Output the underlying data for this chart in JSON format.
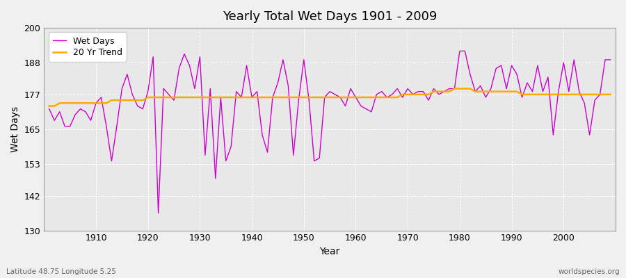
{
  "title": "Yearly Total Wet Days 1901 - 2009",
  "xlabel": "Year",
  "ylabel": "Wet Days",
  "subtitle_left": "Latitude 48.75 Longitude 5.25",
  "subtitle_right": "worldspecies.org",
  "line_color": "#cc00cc",
  "trend_color": "#ffaa00",
  "fig_bg_color": "#f0f0f0",
  "plot_bg_color": "#e8e8e8",
  "ylim": [
    130,
    200
  ],
  "yticks": [
    130,
    142,
    153,
    165,
    177,
    188,
    200
  ],
  "years": [
    1901,
    1902,
    1903,
    1904,
    1905,
    1906,
    1907,
    1908,
    1909,
    1910,
    1911,
    1912,
    1913,
    1914,
    1915,
    1916,
    1917,
    1918,
    1919,
    1920,
    1921,
    1922,
    1923,
    1924,
    1925,
    1926,
    1927,
    1928,
    1929,
    1930,
    1931,
    1932,
    1933,
    1934,
    1935,
    1936,
    1937,
    1938,
    1939,
    1940,
    1941,
    1942,
    1943,
    1944,
    1945,
    1946,
    1947,
    1948,
    1949,
    1950,
    1951,
    1952,
    1953,
    1954,
    1955,
    1956,
    1957,
    1958,
    1959,
    1960,
    1961,
    1962,
    1963,
    1964,
    1965,
    1966,
    1967,
    1968,
    1969,
    1970,
    1971,
    1972,
    1973,
    1974,
    1975,
    1976,
    1977,
    1978,
    1979,
    1980,
    1981,
    1982,
    1983,
    1984,
    1985,
    1986,
    1987,
    1988,
    1989,
    1990,
    1991,
    1992,
    1993,
    1994,
    1995,
    1996,
    1997,
    1998,
    1999,
    2000,
    2001,
    2002,
    2003,
    2004,
    2005,
    2006,
    2007,
    2008,
    2009
  ],
  "wet_days": [
    172,
    168,
    171,
    166,
    166,
    170,
    172,
    171,
    168,
    174,
    176,
    166,
    154,
    166,
    179,
    184,
    177,
    173,
    172,
    178,
    190,
    136,
    179,
    177,
    175,
    186,
    191,
    187,
    179,
    190,
    156,
    179,
    148,
    176,
    154,
    159,
    178,
    176,
    187,
    176,
    178,
    163,
    157,
    176,
    181,
    189,
    180,
    156,
    175,
    189,
    175,
    154,
    155,
    176,
    178,
    177,
    176,
    173,
    179,
    176,
    173,
    172,
    171,
    177,
    178,
    176,
    177,
    179,
    176,
    179,
    177,
    178,
    178,
    175,
    179,
    177,
    178,
    179,
    179,
    192,
    192,
    184,
    178,
    180,
    176,
    179,
    186,
    187,
    179,
    187,
    184,
    176,
    181,
    178,
    187,
    178,
    183,
    163,
    178,
    188,
    178,
    189,
    178,
    174,
    163,
    175,
    177,
    189,
    189
  ],
  "trend": [
    173,
    173,
    174,
    174,
    174,
    174,
    174,
    174,
    174,
    174,
    174,
    174,
    175,
    175,
    175,
    175,
    175,
    175,
    175,
    176,
    176,
    176,
    176,
    176,
    176,
    176,
    176,
    176,
    176,
    176,
    176,
    176,
    176,
    176,
    176,
    176,
    176,
    176,
    176,
    176,
    176,
    176,
    176,
    176,
    176,
    176,
    176,
    176,
    176,
    176,
    176,
    176,
    176,
    176,
    176,
    176,
    176,
    176,
    176,
    176,
    176,
    176,
    176,
    176,
    176,
    176,
    176,
    176,
    177,
    177,
    177,
    177,
    177,
    177,
    178,
    178,
    178,
    178,
    179,
    179,
    179,
    179,
    178,
    178,
    178,
    178,
    178,
    178,
    178,
    178,
    178,
    177,
    177,
    177,
    177,
    177,
    177,
    177,
    177,
    177,
    177,
    177,
    177,
    177,
    177,
    177,
    177,
    177,
    177
  ],
  "legend_label_wet": "Wet Days",
  "legend_label_trend": "20 Yr Trend",
  "xtick_positions": [
    1910,
    1920,
    1930,
    1940,
    1950,
    1960,
    1970,
    1980,
    1990,
    2000
  ]
}
